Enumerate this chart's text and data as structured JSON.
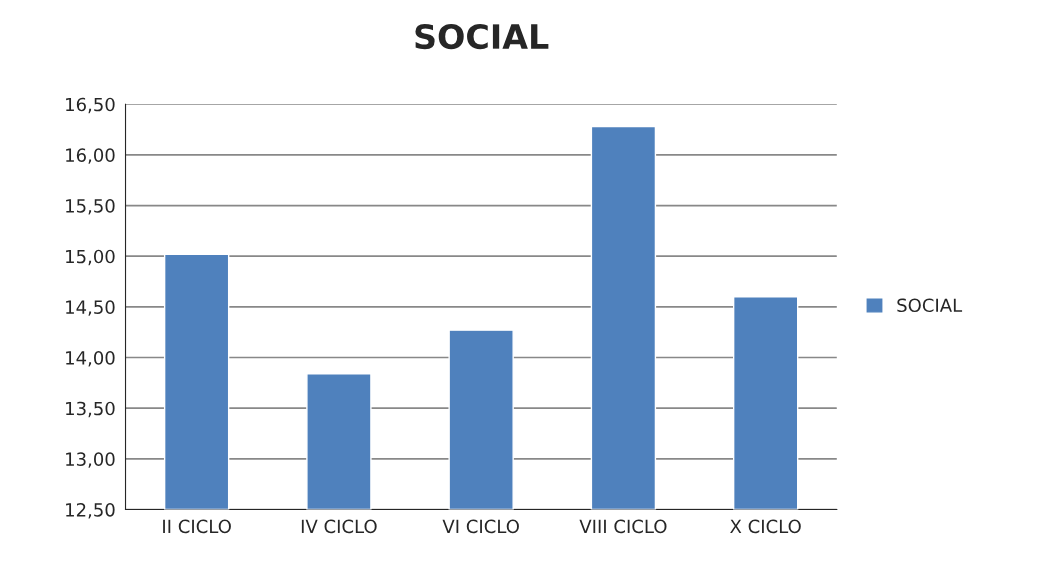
{
  "chart_data": {
    "type": "bar",
    "title": "SOCIAL",
    "categories": [
      "II CICLO",
      "IV CICLO",
      "VI CICLO",
      "VIII CICLO",
      "X CICLO"
    ],
    "series": [
      {
        "name": "SOCIAL",
        "color": "#4f81bd",
        "values": [
          15.02,
          13.84,
          14.27,
          16.28,
          14.6
        ]
      }
    ],
    "ylim": [
      12.5,
      16.5
    ],
    "yticks": [
      {
        "value": 12.5,
        "label": "12,50"
      },
      {
        "value": 13.0,
        "label": "13,00"
      },
      {
        "value": 13.5,
        "label": "13,50"
      },
      {
        "value": 14.0,
        "label": "14,00"
      },
      {
        "value": 14.5,
        "label": "14,50"
      },
      {
        "value": 15.0,
        "label": "15,00"
      },
      {
        "value": 15.5,
        "label": "15,50"
      },
      {
        "value": 16.0,
        "label": "16,00"
      },
      {
        "value": 16.5,
        "label": "16,50"
      }
    ],
    "grid": "y",
    "legend": "right"
  }
}
